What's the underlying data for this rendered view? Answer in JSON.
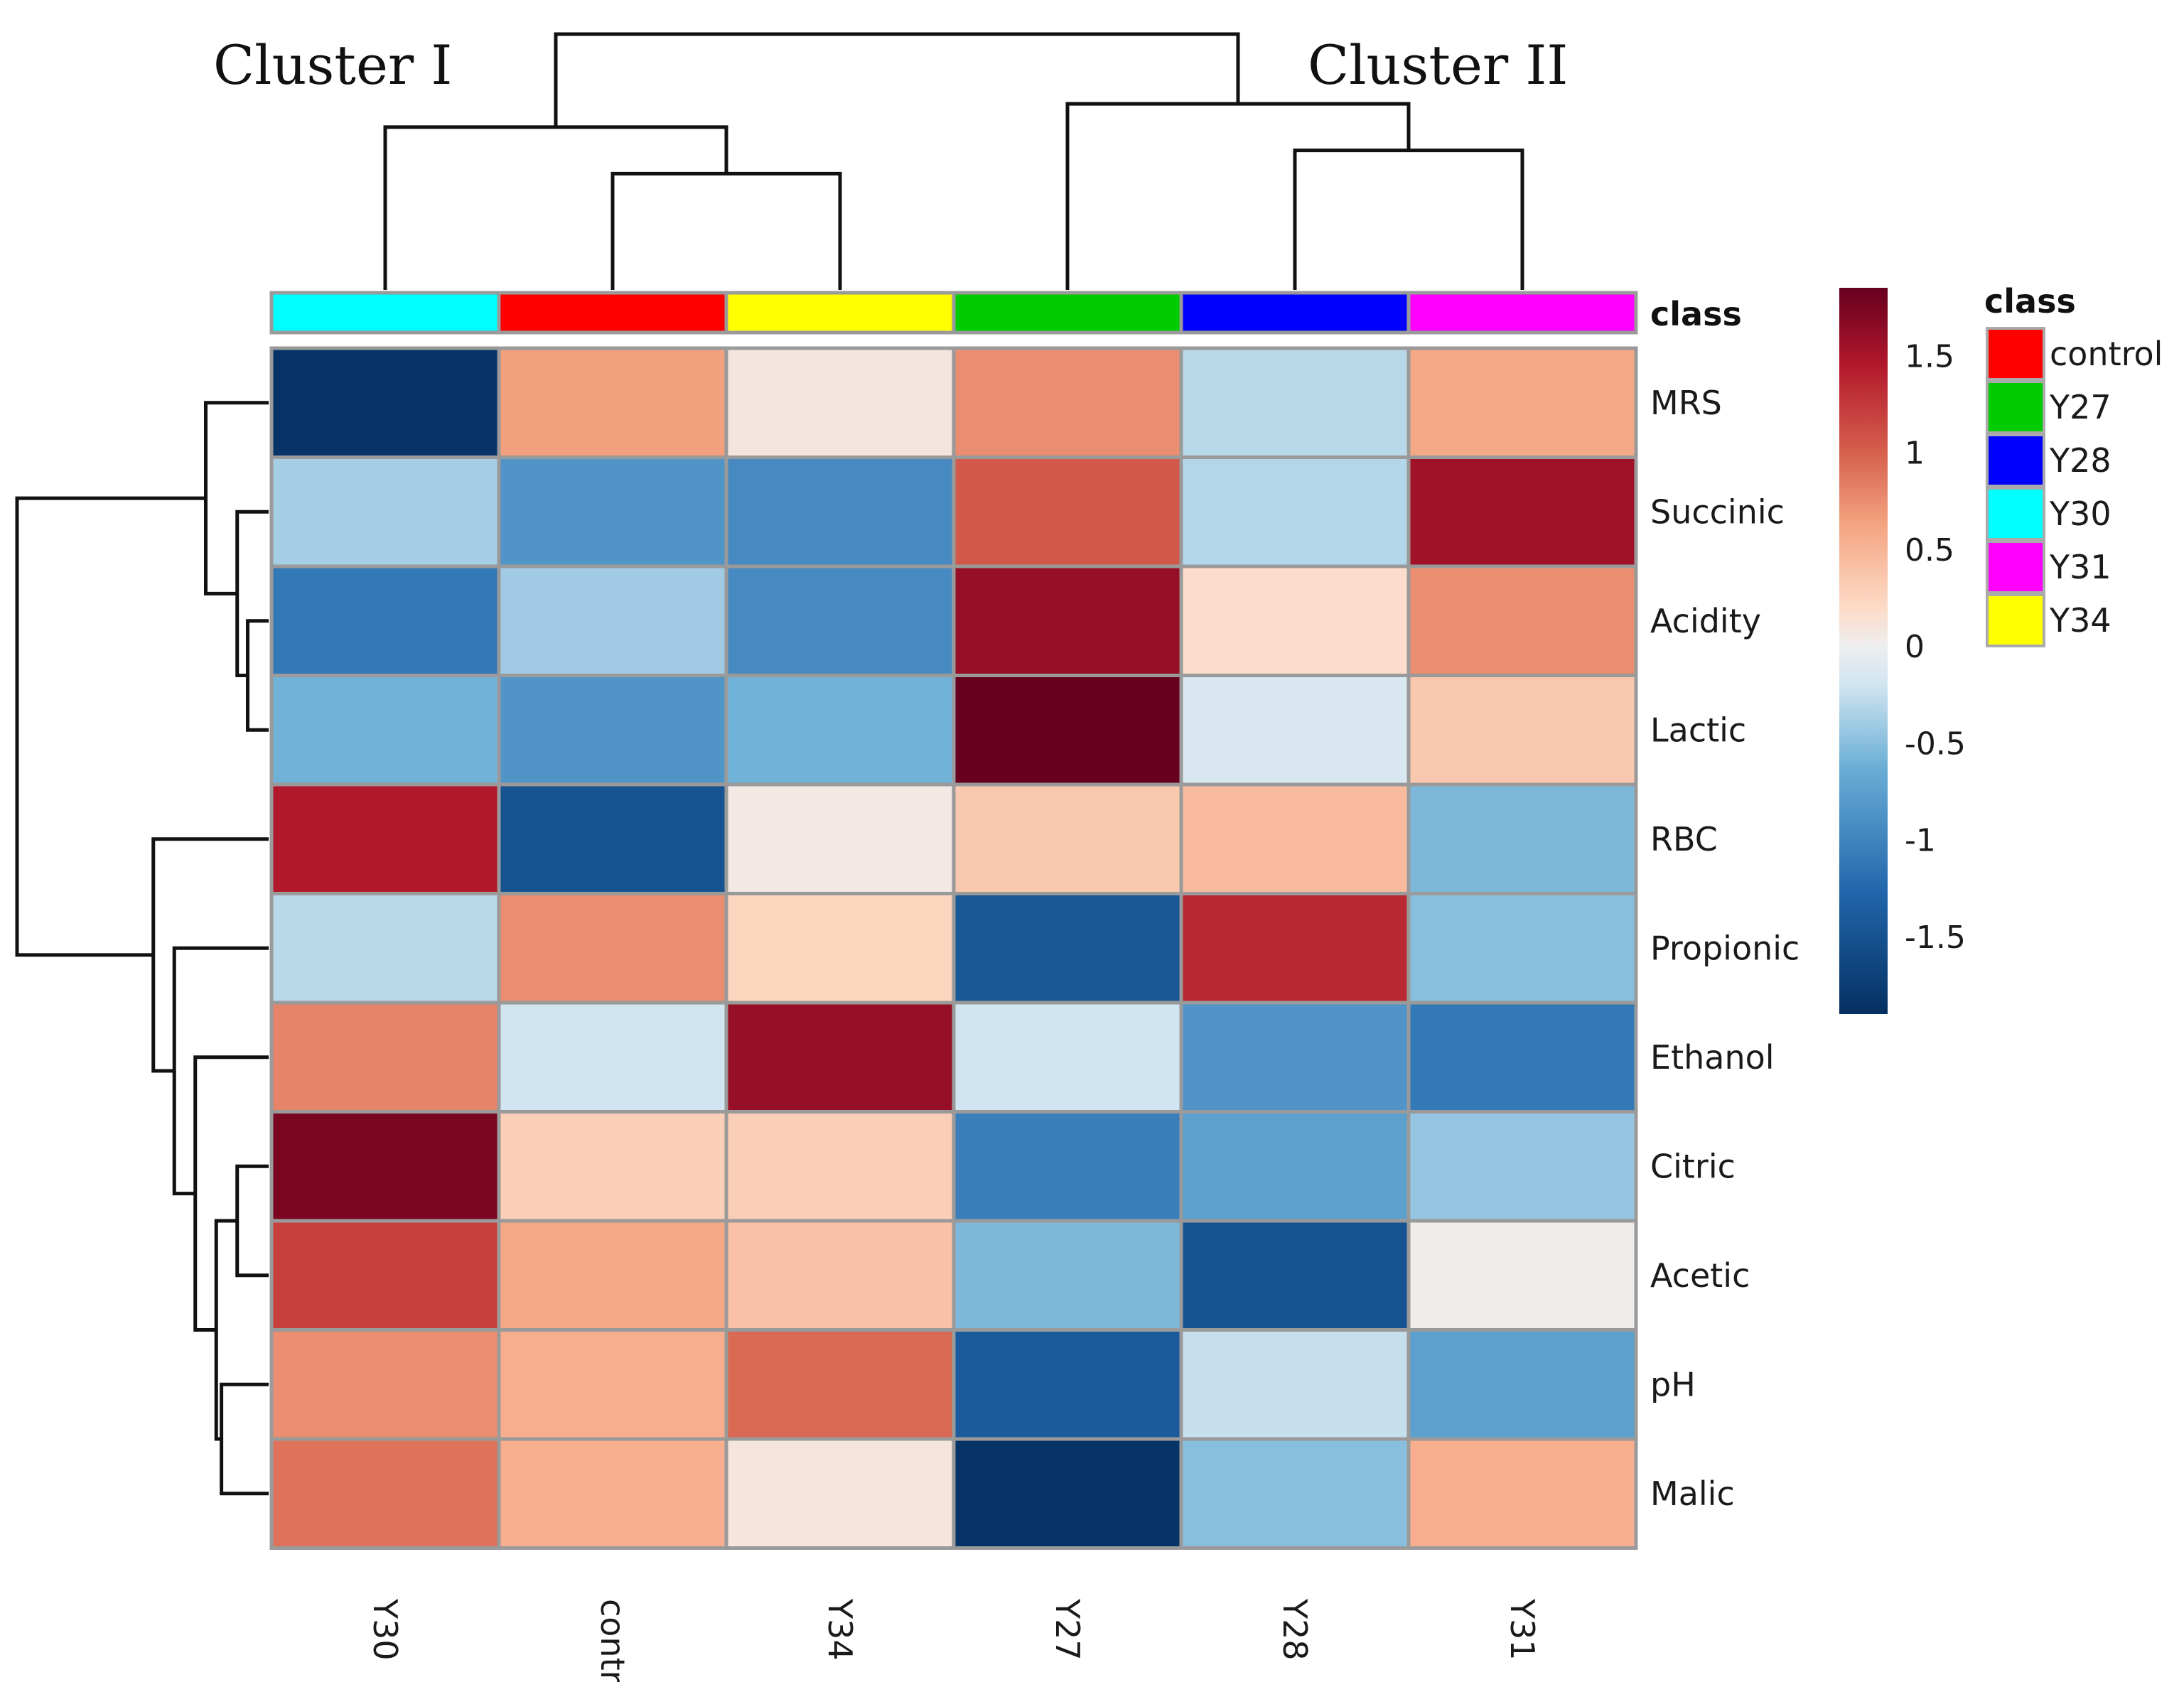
{
  "chart_data": {
    "type": "heatmap",
    "cluster_labels": [
      "Cluster I",
      "Cluster II"
    ],
    "columns": [
      "Y30",
      "control",
      "Y34",
      "Y27",
      "Y28",
      "Y31"
    ],
    "rows": [
      "MRS",
      "Succinic",
      "Acidity",
      "Lactic",
      "RBC",
      "Propionic",
      "Ethanol",
      "Citric",
      "Acetic",
      "pH",
      "Malic"
    ],
    "values": [
      [
        -1.85,
        0.65,
        0.08,
        0.75,
        -0.3,
        0.6
      ],
      [
        -0.38,
        -0.85,
        -0.95,
        1.05,
        -0.32,
        1.55
      ],
      [
        -1.1,
        -0.4,
        -0.95,
        1.6,
        0.18,
        0.75
      ],
      [
        -0.6,
        -0.85,
        -0.6,
        1.85,
        -0.15,
        0.35
      ],
      [
        1.45,
        -1.5,
        0.05,
        0.35,
        0.45,
        -0.55
      ],
      [
        -0.3,
        0.75,
        0.25,
        -1.45,
        1.35,
        -0.5
      ],
      [
        0.8,
        -0.2,
        1.6,
        -0.2,
        -0.85,
        -1.1
      ],
      [
        1.75,
        0.3,
        0.3,
        -1.05,
        -0.75,
        -0.45
      ],
      [
        1.2,
        0.6,
        0.4,
        -0.55,
        -1.5,
        0.02
      ],
      [
        0.75,
        0.55,
        0.95,
        -1.4,
        -0.25,
        -0.75
      ],
      [
        0.9,
        0.55,
        0.1,
        -1.85,
        -0.5,
        0.55
      ]
    ],
    "class_annotation": {
      "title": "class",
      "column_classes": [
        "Y30",
        "control",
        "Y34",
        "Y27",
        "Y28",
        "Y31"
      ]
    },
    "class_legend": {
      "title": "class",
      "entries": [
        {
          "name": "control",
          "color": "#ff0000"
        },
        {
          "name": "Y27",
          "color": "#00cc00"
        },
        {
          "name": "Y28",
          "color": "#0000ff"
        },
        {
          "name": "Y30",
          "color": "#00ffff"
        },
        {
          "name": "Y31",
          "color": "#ff00ff"
        },
        {
          "name": "Y34",
          "color": "#ffff00"
        }
      ]
    },
    "color_scale": {
      "ticks": [
        "1.5",
        "1",
        "0.5",
        "0",
        "-0.5",
        "-1",
        "-1.5"
      ],
      "tick_values": [
        1.5,
        1,
        0.5,
        0,
        -0.5,
        -1,
        -1.5
      ],
      "range": [
        -1.9,
        1.85
      ],
      "stops": [
        {
          "v": -1.9,
          "color": "#053061"
        },
        {
          "v": -1.27,
          "color": "#2166ac"
        },
        {
          "v": -0.63,
          "color": "#6aaed6"
        },
        {
          "v": -0.2,
          "color": "#d1e5f0"
        },
        {
          "v": 0,
          "color": "#eeeeee"
        },
        {
          "v": 0.2,
          "color": "#fddbc7"
        },
        {
          "v": 0.62,
          "color": "#f4a582"
        },
        {
          "v": 1.0,
          "color": "#d6604d"
        },
        {
          "v": 1.45,
          "color": "#b2182b"
        },
        {
          "v": 1.85,
          "color": "#67001f"
        }
      ]
    },
    "column_dendrogram": {
      "order": [
        "Y30",
        "control",
        "Y34",
        "Y27",
        "Y28",
        "Y31"
      ],
      "merges": [
        [
          1,
          2,
          1.0
        ],
        [
          0,
          -1,
          1.4
        ],
        [
          4,
          5,
          1.2
        ],
        [
          3,
          -3,
          1.6
        ],
        [
          -2,
          -4,
          2.2
        ]
      ]
    },
    "row_dendrogram": {
      "order": [
        "MRS",
        "Succinic",
        "Acidity",
        "Lactic",
        "RBC",
        "Propionic",
        "Ethanol",
        "Citric",
        "Acetic",
        "pH",
        "Malic"
      ],
      "merges": [
        [
          2,
          3,
          0.2
        ],
        [
          1,
          -1,
          0.3
        ],
        [
          0,
          -2,
          0.6
        ],
        [
          7,
          8,
          0.3
        ],
        [
          9,
          10,
          0.45
        ],
        [
          -4,
          -5,
          0.5
        ],
        [
          6,
          -6,
          0.7
        ],
        [
          5,
          -7,
          0.9
        ],
        [
          4,
          -8,
          1.1
        ],
        [
          -3,
          -9,
          2.4
        ]
      ]
    }
  }
}
